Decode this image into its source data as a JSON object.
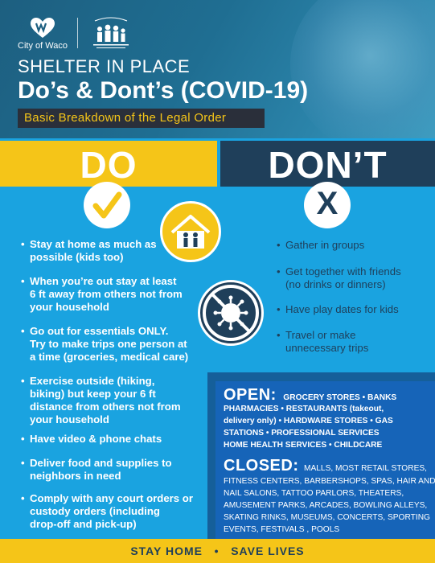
{
  "header": {
    "city_label": "City of Waco",
    "seal_label": "McLennan County Public Health District",
    "title_line1": "SHELTER IN PLACE",
    "title_line2": "Do’s & Dont’s (COVID-19)",
    "subtitle": "Basic Breakdown of the Legal Order"
  },
  "do_section": {
    "heading": "DO",
    "items": [
      {
        "line1": "Stay at home as much as",
        "line2": "possible (kids too)"
      },
      {
        "line1": "When you’re out stay at least",
        "line2": "6 ft away from others not from",
        "line3": "your household"
      },
      {
        "line1": "Go out for essentials ONLY.",
        "line2": "Try to make trips one person at",
        "line3": "a time (groceries, medical care)"
      },
      {
        "line1": "Exercise outside (hiking,",
        "line2": "biking) but keep your 6 ft",
        "line3": "distance from others not from",
        "line4": " your household"
      },
      {
        "line1": "Have video & phone chats"
      },
      {
        "line1": "Deliver food and supplies to",
        "line2": "neighbors in need"
      },
      {
        "line1": "Comply with any court orders or",
        "line2": "custody orders (including",
        "line3": "drop-off and pick-up)"
      }
    ]
  },
  "dont_section": {
    "heading": "DON’T",
    "x_mark": "X",
    "items": [
      {
        "line1": "Gather in groups"
      },
      {
        "line1": "Get together with friends",
        "line2": "(no drinks or dinners)"
      },
      {
        "line1": "Have play dates for kids"
      },
      {
        "line1": "Travel or make",
        "line2": "unnecessary trips"
      }
    ]
  },
  "open_closed": {
    "open_label": "OPEN:",
    "open_line1": "GROCERY STORES  •  BANKS",
    "open_line2": "PHARMACIES • RESTAURANTS (takeout,",
    "open_line3": "delivery only) • HARDWARE STORES  •  GAS",
    "open_line4": "STATIONS  •  PROFESSIONAL SERVICES",
    "open_line5": "HOME HEALTH SERVICES  •  CHILDCARE",
    "closed_label": "CLOSED:",
    "closed_line1": "MALLS, MOST RETAIL STORES,",
    "closed_line2": "FITNESS CENTERS, BARBERSHOPS, SPAS, HAIR AND",
    "closed_line3": "NAIL SALONS, TATTOO PARLORS, THEATERS,",
    "closed_line4": "AMUSEMENT PARKS, ARCADES, BOWLING ALLEYS,",
    "closed_line5": "SKATING RINKS, MUSEUMS, CONCERTS, SPORTING",
    "closed_line6": "EVENTS, FESTIVALS , POOLS"
  },
  "footer": {
    "text": "STAY HOME   •   SAVE LIVES"
  },
  "colors": {
    "yellow": "#f5c518",
    "navy": "#1f3f5a",
    "sky": "#1aa3e0",
    "panel_blue": "#1664b8"
  }
}
